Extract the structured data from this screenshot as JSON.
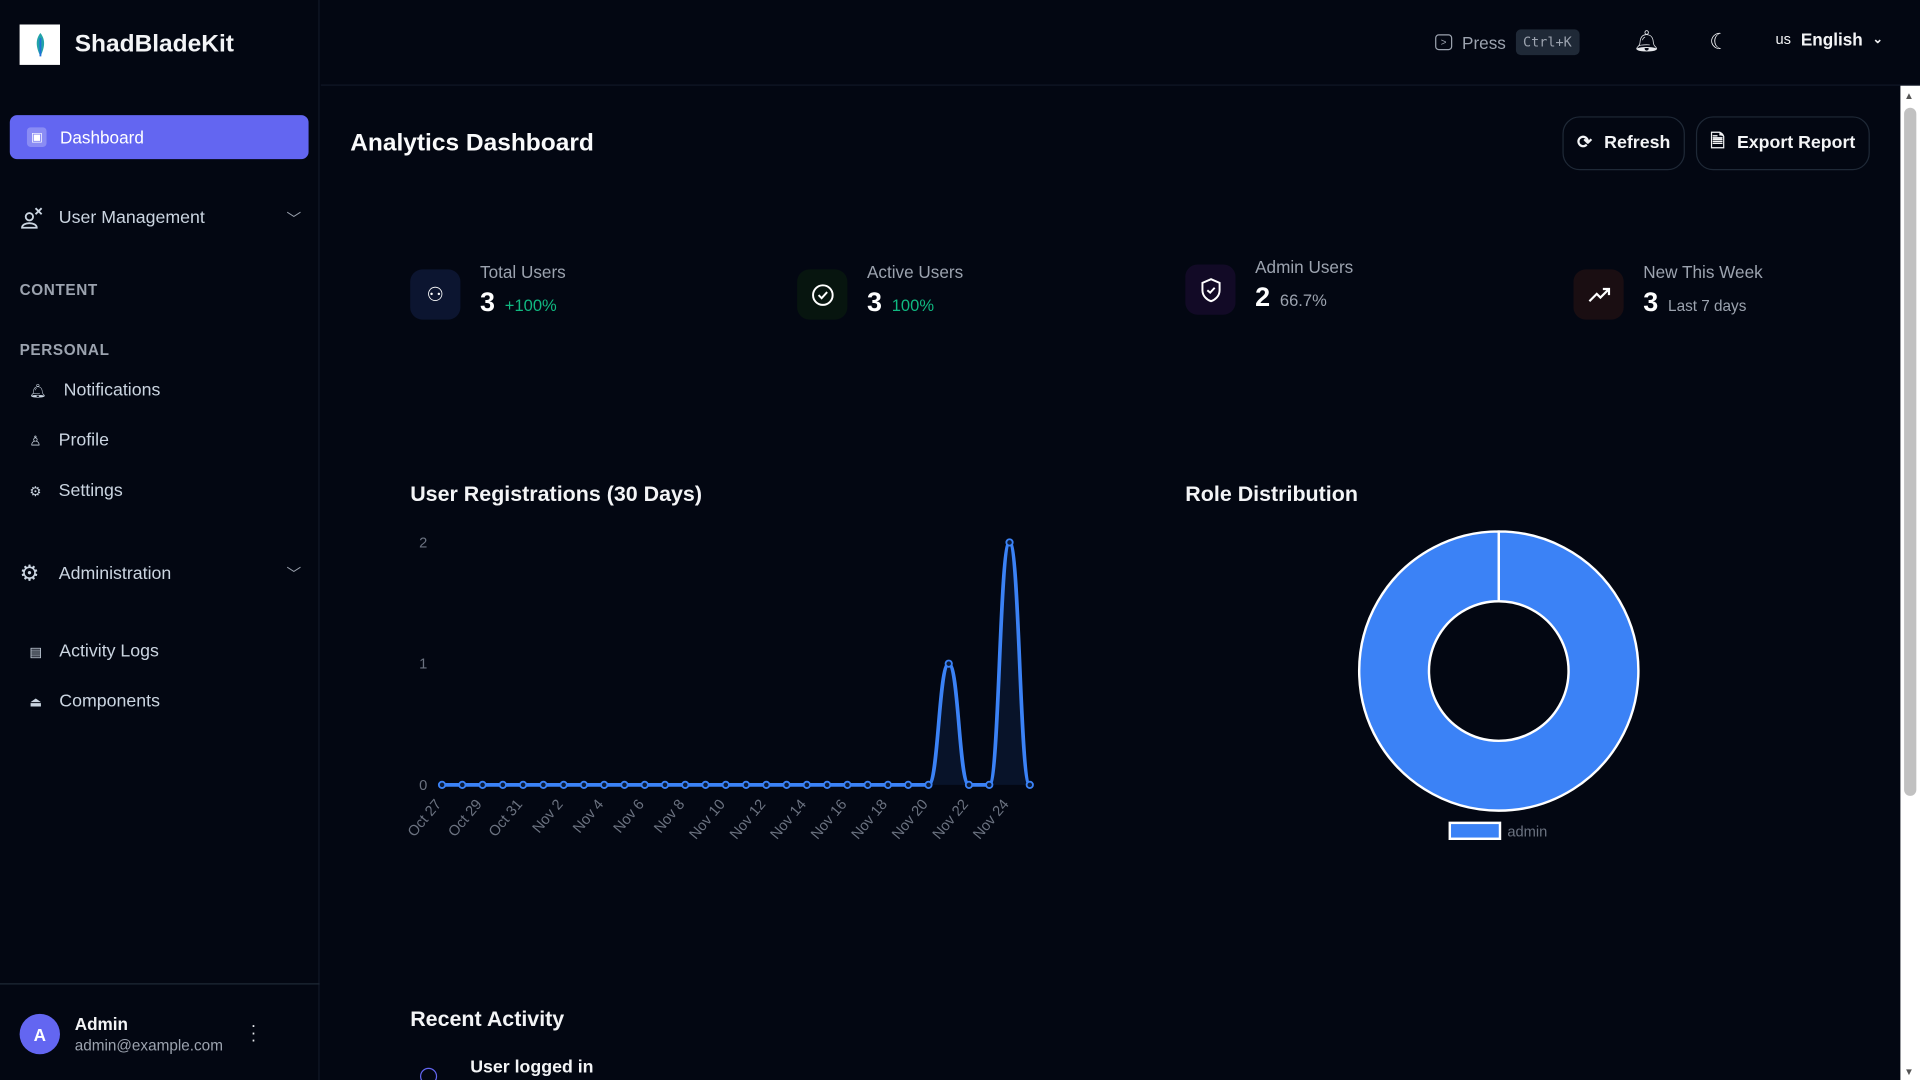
{
  "brand": {
    "name": "ShadBladeKit"
  },
  "sidebar": {
    "active": {
      "label": "Dashboard"
    },
    "user_management": {
      "label": "User Management"
    },
    "sections": {
      "content": "CONTENT",
      "personal": "PERSONAL"
    },
    "personal_items": [
      {
        "label": "Notifications",
        "icon": "bell-icon"
      },
      {
        "label": "Profile",
        "icon": "user-icon"
      },
      {
        "label": "Settings",
        "icon": "gear-icon"
      }
    ],
    "administration": {
      "label": "Administration"
    },
    "admin_items": [
      {
        "label": "Activity Logs",
        "icon": "clipboard-icon"
      },
      {
        "label": "Components",
        "icon": "box-icon"
      }
    ],
    "user": {
      "initial": "A",
      "name": "Admin",
      "email": "admin@example.com"
    }
  },
  "topbar": {
    "press": "Press",
    "shortcut": "Ctrl+K",
    "lang_code": "us",
    "language": "English"
  },
  "page": {
    "title": "Analytics Dashboard",
    "refresh": "Refresh",
    "export": "Export Report"
  },
  "stats": [
    {
      "label": "Total Users",
      "value": "3",
      "delta": "+100%",
      "delta_color": "#10b981",
      "icon": "users-icon"
    },
    {
      "label": "Active Users",
      "value": "3",
      "delta": "100%",
      "delta_color": "#10b981",
      "icon": "check-circle-icon"
    },
    {
      "label": "Admin Users",
      "value": "2",
      "delta": "66.7%",
      "delta_color": "#9ca3af",
      "icon": "shield-check-icon"
    },
    {
      "label": "New This Week",
      "value": "3",
      "delta": "Last 7 days",
      "delta_color": "#9ca3af",
      "icon": "trending-up-icon"
    }
  ],
  "chart_data": [
    {
      "type": "line",
      "title": "User Registrations (30 Days)",
      "color": "#3b82f6",
      "ylim": [
        0,
        2
      ],
      "yticks": [
        0,
        1,
        2
      ],
      "x": [
        "Oct 27",
        "Oct 28",
        "Oct 29",
        "Oct 30",
        "Oct 31",
        "Nov 1",
        "Nov 2",
        "Nov 3",
        "Nov 4",
        "Nov 5",
        "Nov 6",
        "Nov 7",
        "Nov 8",
        "Nov 9",
        "Nov 10",
        "Nov 11",
        "Nov 12",
        "Nov 13",
        "Nov 14",
        "Nov 15",
        "Nov 16",
        "Nov 17",
        "Nov 18",
        "Nov 19",
        "Nov 20",
        "Nov 21",
        "Nov 22",
        "Nov 23",
        "Nov 24",
        "Nov 25"
      ],
      "xtick_labels": [
        "Oct 27",
        "Oct 29",
        "Oct 31",
        "Nov 2",
        "Nov 4",
        "Nov 6",
        "Nov 8",
        "Nov 10",
        "Nov 12",
        "Nov 14",
        "Nov 16",
        "Nov 18",
        "Nov 20",
        "Nov 22",
        "Nov 24"
      ],
      "values": [
        0,
        0,
        0,
        0,
        0,
        0,
        0,
        0,
        0,
        0,
        0,
        0,
        0,
        0,
        0,
        0,
        0,
        0,
        0,
        0,
        0,
        0,
        0,
        0,
        0,
        1,
        0,
        0,
        2,
        0
      ]
    },
    {
      "type": "pie",
      "title": "Role Distribution",
      "donut": true,
      "categories": [
        "admin"
      ],
      "values": [
        2
      ],
      "colors": [
        "#3b82f6"
      ],
      "legend": "bottom"
    }
  ],
  "recent": {
    "title": "Recent Activity",
    "items": [
      {
        "label": "User logged in"
      }
    ]
  }
}
